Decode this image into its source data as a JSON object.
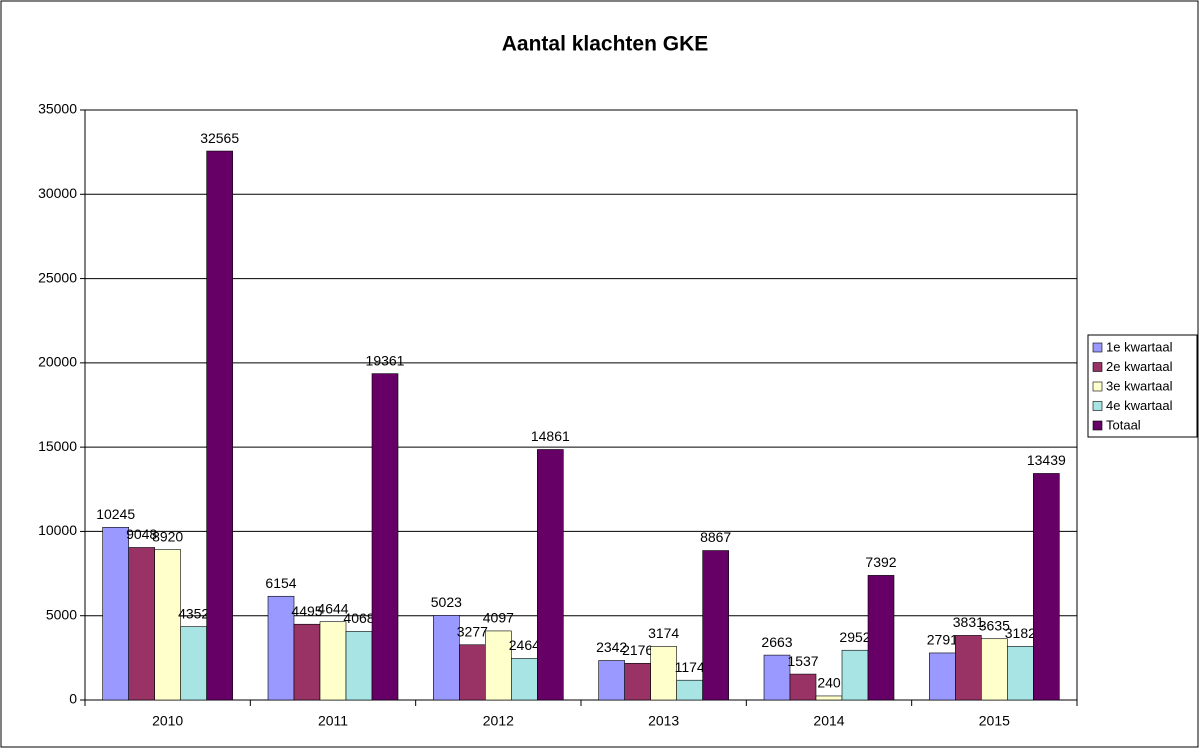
{
  "chart_data": {
    "type": "bar",
    "title": "Aantal klachten GKE",
    "categories": [
      "2010",
      "2011",
      "2012",
      "2013",
      "2014",
      "2015"
    ],
    "series": [
      {
        "name": "1e kwartaal",
        "color": "#9999ff",
        "values": [
          10245,
          6154,
          5023,
          2342,
          2663,
          2791
        ]
      },
      {
        "name": "2e kwartaal",
        "color": "#993366",
        "values": [
          9048,
          4495,
          3277,
          2176,
          1537,
          3831
        ]
      },
      {
        "name": "3e kwartaal",
        "color": "#ffffcc",
        "values": [
          8920,
          4644,
          4097,
          3174,
          240,
          3635
        ]
      },
      {
        "name": "4e kwartaal",
        "color": "#a8e4e4",
        "values": [
          4352,
          4068,
          2464,
          1174,
          2952,
          3182
        ]
      },
      {
        "name": "Totaal",
        "color": "#660066",
        "values": [
          32565,
          19361,
          14861,
          8867,
          7392,
          13439
        ]
      }
    ],
    "ylim": [
      0,
      35000
    ],
    "yticks": [
      0,
      5000,
      10000,
      15000,
      20000,
      25000,
      30000,
      35000
    ],
    "grid": true,
    "legend": "right"
  }
}
